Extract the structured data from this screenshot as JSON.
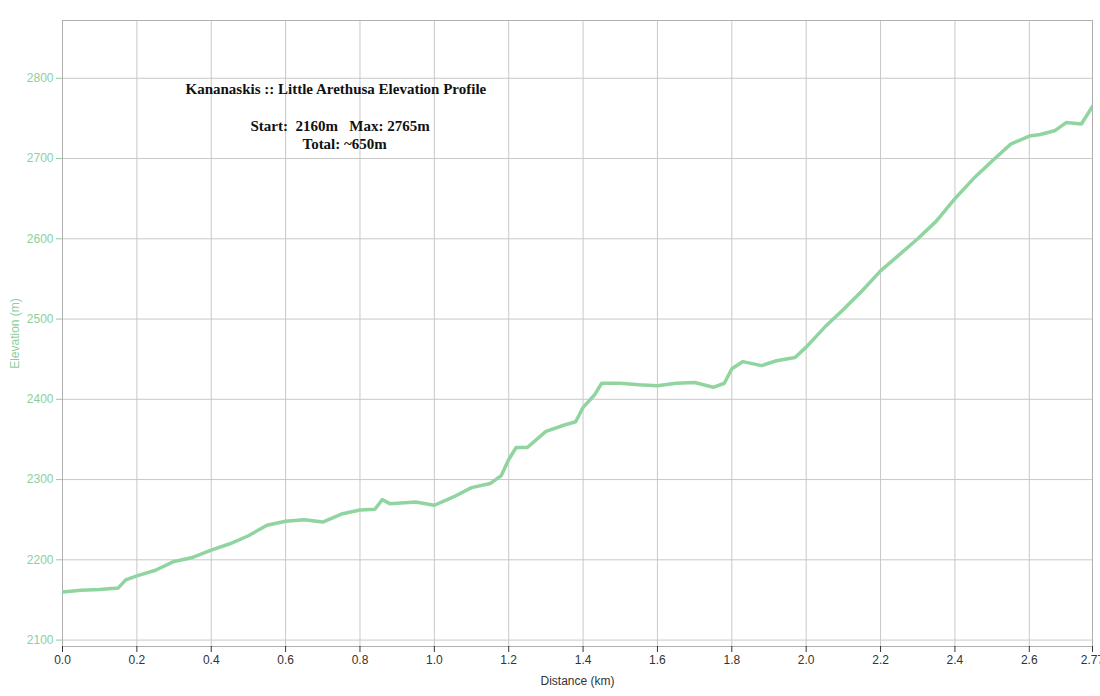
{
  "chart_data": {
    "type": "line",
    "title": "Kananaskis :: Little Arethusa Elevation Profile",
    "annotations": [
      "Start:  2160m   Max: 2765m",
      "Total: ~650m"
    ],
    "x_label": "Distance (km)",
    "y_label": "Elevation (m)",
    "color": "#90d4a0",
    "grid": true,
    "xlim": [
      0,
      2.77
    ],
    "ylim": [
      2092,
      2872
    ],
    "xticks": [
      {
        "value": 0,
        "label": "0.0"
      },
      0.2,
      0.4,
      0.6,
      0.8,
      {
        "value": 1,
        "label": "1.0"
      },
      1.2,
      1.4,
      1.6,
      1.8,
      {
        "value": 2,
        "label": "2.0"
      },
      2.2,
      2.4,
      2.6,
      2.77
    ],
    "yticks": [
      2100,
      2200,
      2300,
      2400,
      2500,
      2600,
      2700,
      2800
    ],
    "x": [
      0,
      0.05,
      0.1,
      0.15,
      0.17,
      0.2,
      0.25,
      0.3,
      0.35,
      0.4,
      0.45,
      0.5,
      0.55,
      0.6,
      0.65,
      0.7,
      0.75,
      0.8,
      0.84,
      0.86,
      0.88,
      0.95,
      1.0,
      1.05,
      1.1,
      1.15,
      1.18,
      1.2,
      1.22,
      1.25,
      1.3,
      1.35,
      1.38,
      1.4,
      1.43,
      1.45,
      1.5,
      1.55,
      1.6,
      1.65,
      1.7,
      1.75,
      1.78,
      1.8,
      1.83,
      1.88,
      1.92,
      1.97,
      2.0,
      2.05,
      2.1,
      2.15,
      2.2,
      2.25,
      2.3,
      2.35,
      2.4,
      2.45,
      2.5,
      2.55,
      2.6,
      2.63,
      2.67,
      2.7,
      2.74,
      2.77
    ],
    "values": [
      2160,
      2162,
      2163,
      2165,
      2175,
      2180,
      2187,
      2198,
      2203,
      2212,
      2220,
      2230,
      2243,
      2248,
      2250,
      2247,
      2257,
      2262,
      2263,
      2275,
      2270,
      2272,
      2268,
      2278,
      2290,
      2295,
      2305,
      2325,
      2340,
      2340,
      2360,
      2368,
      2372,
      2390,
      2405,
      2420,
      2420,
      2418,
      2417,
      2420,
      2421,
      2415,
      2420,
      2438,
      2447,
      2442,
      2448,
      2452,
      2465,
      2490,
      2512,
      2535,
      2560,
      2580,
      2600,
      2622,
      2650,
      2675,
      2697,
      2718,
      2728,
      2730,
      2735,
      2745,
      2743,
      2765
    ]
  }
}
